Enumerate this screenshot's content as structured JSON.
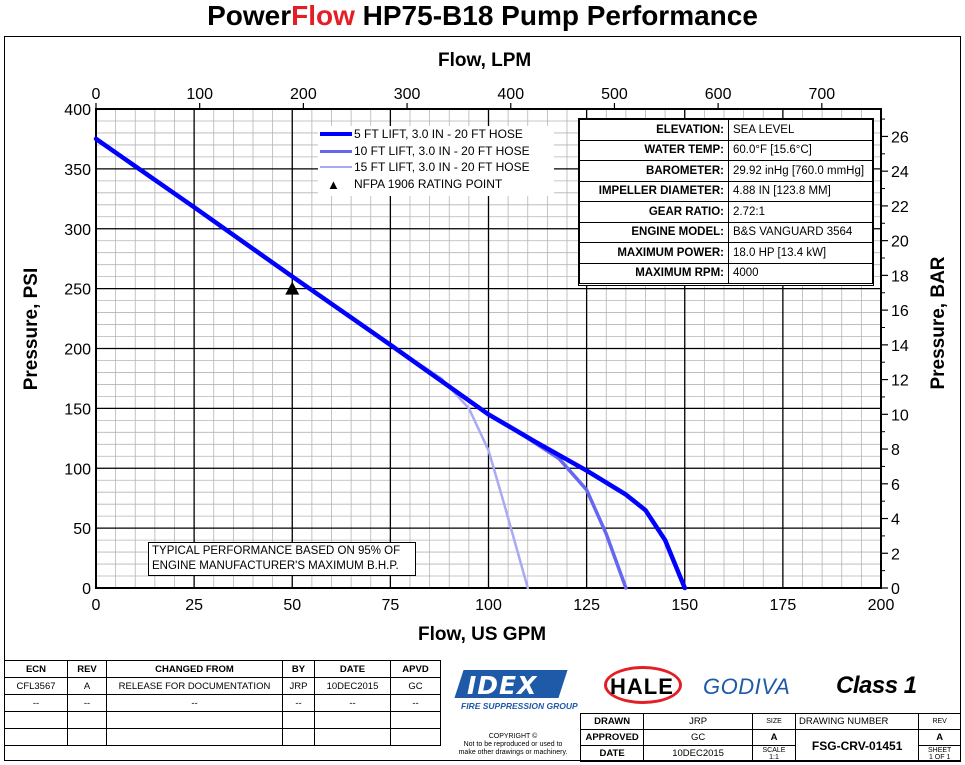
{
  "title": {
    "brand_prefix": "Power",
    "brand_highlight": "Flow",
    "rest": " HP75-B18 Pump Performance"
  },
  "chart_data": {
    "type": "line",
    "title": "PowerFlow HP75-B18 Pump Performance",
    "xlabel": "Flow, US GPM",
    "ylabel": "Pressure, PSI",
    "x2label": "Flow, LPM",
    "y2label": "Pressure, BAR",
    "xlim": [
      0,
      200
    ],
    "ylim": [
      0,
      400
    ],
    "x2lim": [
      0,
      757.08
    ],
    "y2lim": [
      0,
      27.58
    ],
    "xticks": [
      0,
      25,
      50,
      75,
      100,
      125,
      150,
      175,
      200
    ],
    "yticks": [
      0,
      50,
      100,
      150,
      200,
      250,
      300,
      350,
      400
    ],
    "x2ticks": [
      0,
      100,
      200,
      300,
      400,
      500,
      600,
      700
    ],
    "y2ticks": [
      0,
      2,
      4,
      6,
      8,
      10,
      12,
      14,
      16,
      18,
      20,
      22,
      24,
      26
    ],
    "grid": true,
    "series": [
      {
        "name": "5 FT LIFT, 3.0 IN - 20 FT HOSE",
        "color": "#0000ff",
        "x": [
          0,
          25,
          50,
          75,
          100,
          112,
          125,
          135,
          140,
          145,
          150
        ],
        "y": [
          375,
          318,
          260,
          203,
          145,
          122,
          98,
          78,
          65,
          40,
          0
        ]
      },
      {
        "name": "10 FT LIFT, 3.0 IN - 20 FT HOSE",
        "color": "#6666f2",
        "x": [
          0,
          25,
          50,
          75,
          100,
          110,
          118,
          125,
          130,
          135
        ],
        "y": [
          375,
          318,
          260,
          203,
          145,
          125,
          108,
          82,
          45,
          0
        ]
      },
      {
        "name": "15 FT LIFT, 3.0 IN - 20 FT HOSE",
        "color": "#a9a9f5",
        "x": [
          0,
          25,
          50,
          75,
          88,
          95,
          100,
          104,
          107,
          110
        ],
        "y": [
          375,
          318,
          260,
          203,
          175,
          150,
          115,
          70,
          35,
          0
        ]
      }
    ],
    "rating_point": {
      "name": "NFPA 1906 RATING POINT",
      "x": 50,
      "y": 250
    }
  },
  "specs": [
    {
      "label": "ELEVATION:",
      "value": "SEA LEVEL"
    },
    {
      "label": "WATER TEMP:",
      "value": "60.0°F [15.6°C]"
    },
    {
      "label": "BAROMETER:",
      "value": "29.92 inHg [760.0 mmHg]"
    },
    {
      "label": "IMPELLER DIAMETER:",
      "value": "4.88 IN [123.8 MM]"
    },
    {
      "label": "GEAR RATIO:",
      "value": "2.72:1"
    },
    {
      "label": "ENGINE MODEL:",
      "value": "B&S VANGUARD 3564"
    },
    {
      "label": "MAXIMUM POWER:",
      "value": "18.0 HP [13.4 kW]"
    },
    {
      "label": "MAXIMUM RPM:",
      "value": "4000"
    }
  ],
  "note": {
    "line1": "TYPICAL PERFORMANCE BASED ON 95% OF",
    "line2": "ENGINE MANUFACTURER'S MAXIMUM B.H.P."
  },
  "revision_table": {
    "headers": [
      "ECN",
      "REV",
      "CHANGED FROM",
      "BY",
      "DATE",
      "APVD"
    ],
    "rows": [
      [
        "CFL3567",
        "A",
        "RELEASE FOR DOCUMENTATION",
        "JRP",
        "10DEC2015",
        "GC"
      ],
      [
        "--",
        "--",
        "--",
        "--",
        "--",
        "--"
      ]
    ]
  },
  "logos": {
    "idex": "IDEX",
    "idex_sub": "FIRE SUPPRESSION GROUP",
    "hale": "HALE",
    "godiva": "GODIVA",
    "class1": "Class 1"
  },
  "copyright": {
    "line1": "COPYRIGHT ©",
    "line2": "Not to be reproduced or used to",
    "line3": "make other drawings or machinery."
  },
  "drawing": {
    "drawn_label": "DRAWN",
    "drawn_value": "JRP",
    "approved_label": "APPROVED",
    "approved_value": "GC",
    "date_label": "DATE",
    "date_value": "10DEC2015",
    "size_label": "SIZE",
    "size_value": "A",
    "scale_label": "SCALE",
    "scale_value": "1:1",
    "number_label": "DRAWING NUMBER",
    "number_value": "FSG-CRV-01451",
    "rev_label": "REV",
    "rev_value": "A",
    "sheet_label": "SHEET",
    "sheet_value": "1 OF 1"
  }
}
